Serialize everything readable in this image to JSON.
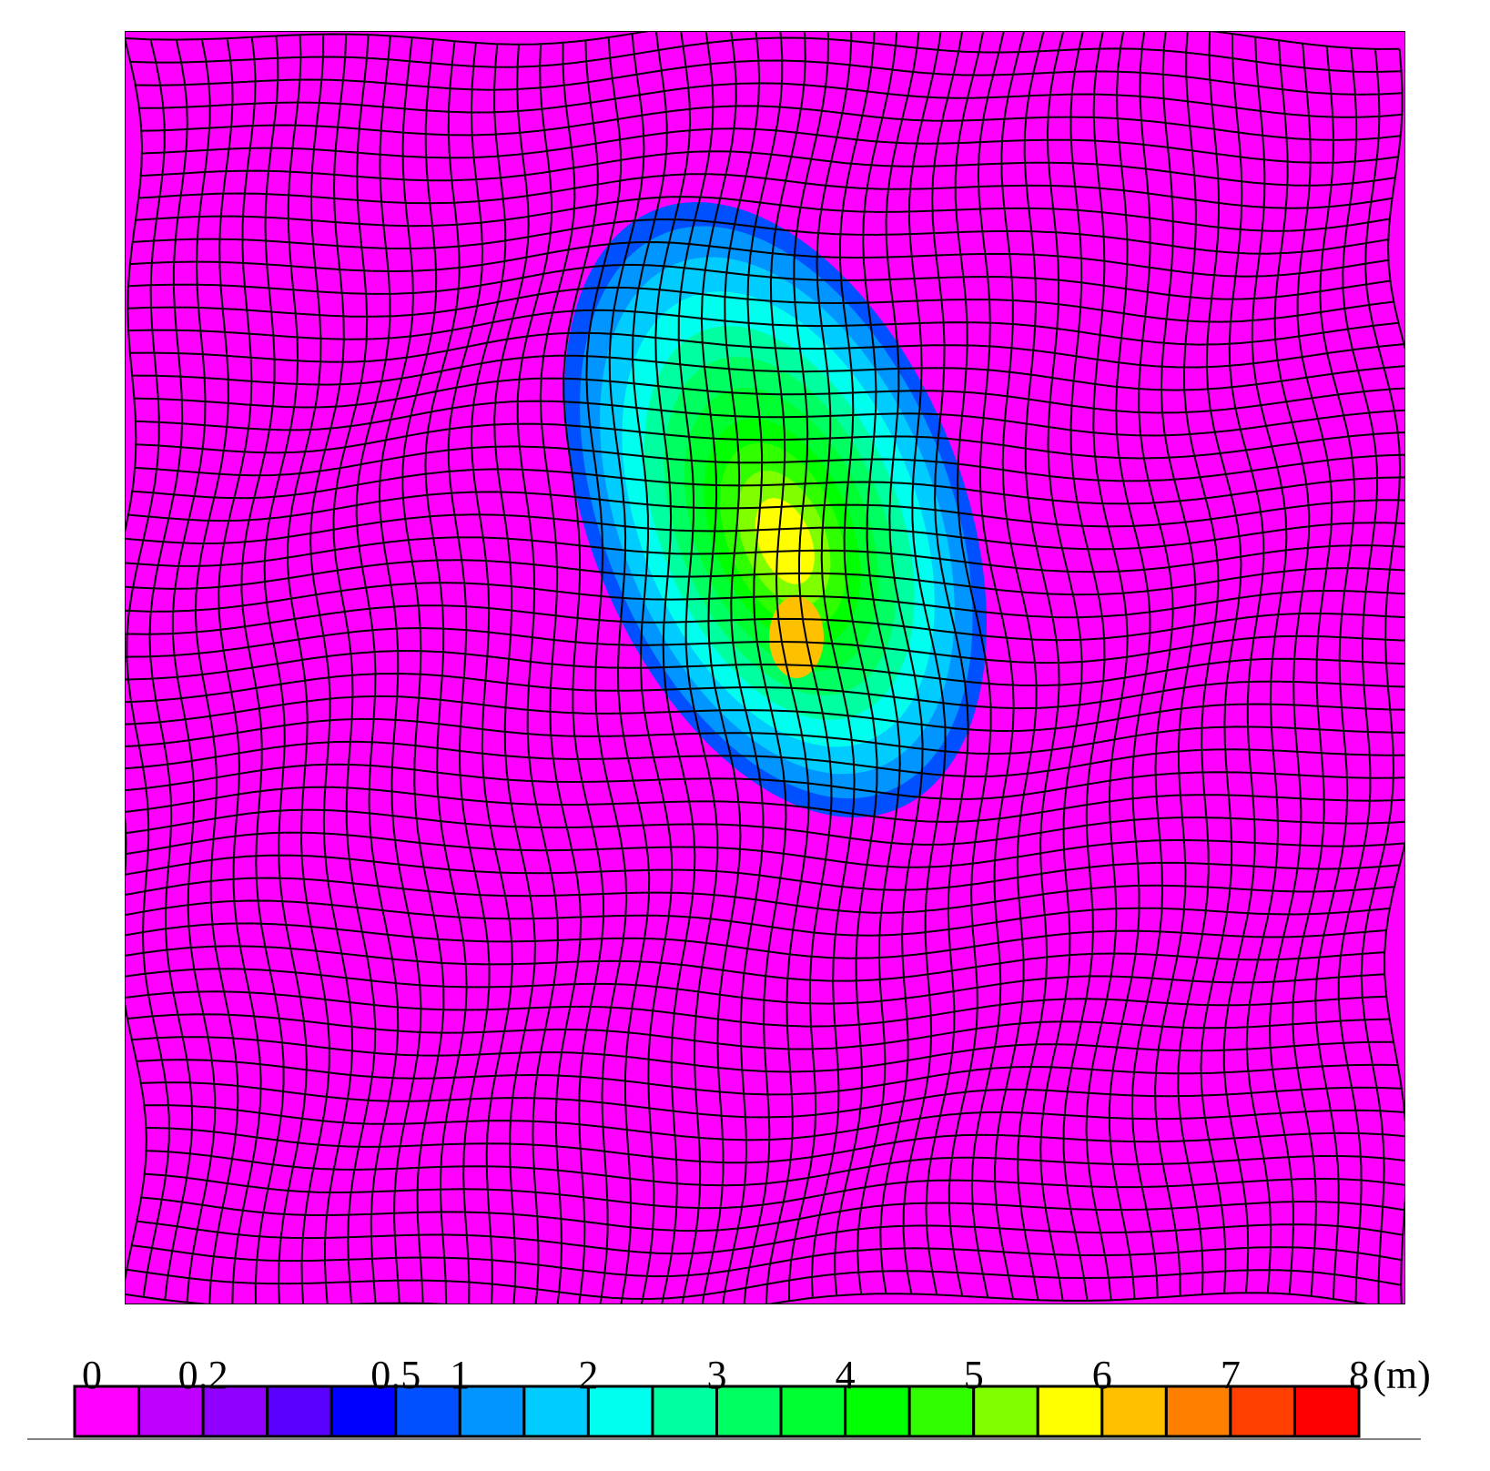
{
  "colorbar": {
    "unit": "(m)",
    "boundaries": [
      0,
      0.1,
      0.2,
      0.3,
      0.4,
      0.5,
      1,
      1.5,
      2,
      2.5,
      3,
      3.5,
      4,
      4.5,
      5,
      5.5,
      6,
      6.5,
      7,
      7.5,
      8
    ],
    "colors": [
      "#ff00ff",
      "#c000ff",
      "#8f00ff",
      "#5a00ff",
      "#0000ff",
      "#0050ff",
      "#0095ff",
      "#00ccff",
      "#00ffee",
      "#00ffa0",
      "#00ff60",
      "#00ff30",
      "#00ff00",
      "#30ff00",
      "#80ff00",
      "#ffff00",
      "#ffc000",
      "#ff8000",
      "#ff4000",
      "#ff0000"
    ],
    "ticks": [
      0,
      0.2,
      0.5,
      1,
      2,
      3,
      4,
      5,
      6,
      7,
      8
    ]
  }
}
